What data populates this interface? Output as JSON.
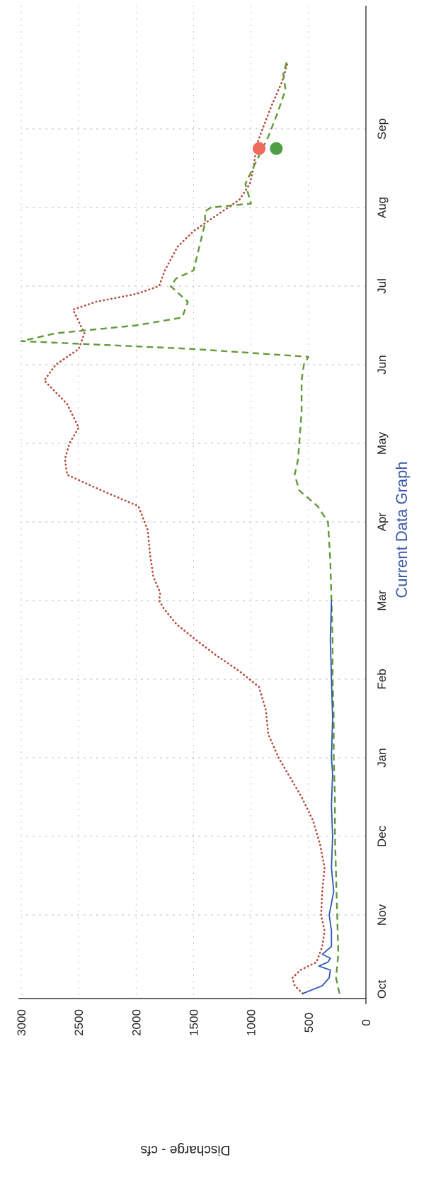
{
  "chart_data": {
    "type": "line",
    "title": "Current Data Graph",
    "ylabel": "Discharge - cfs",
    "xlabel": "",
    "ylim": [
      0,
      3000
    ],
    "xlim": [
      0,
      12
    ],
    "y_ticks": [
      0,
      500,
      1000,
      1500,
      2000,
      2500,
      3000
    ],
    "x_ticks": [
      {
        "label": "Oct",
        "x": 0
      },
      {
        "label": "Nov",
        "x": 1
      },
      {
        "label": "Dec",
        "x": 2
      },
      {
        "label": "Jan",
        "x": 3
      },
      {
        "label": "Feb",
        "x": 4
      },
      {
        "label": "Mar",
        "x": 5
      },
      {
        "label": "Apr",
        "x": 6
      },
      {
        "label": "May",
        "x": 7
      },
      {
        "label": "Jun",
        "x": 8
      },
      {
        "label": "Jul",
        "x": 9
      },
      {
        "label": "Aug",
        "x": 10
      },
      {
        "label": "Sep",
        "x": 11
      }
    ],
    "grid": true,
    "series": [
      {
        "style": "dotted",
        "color": "#b5473a",
        "x": [
          0.0,
          0.1,
          0.2,
          0.3,
          0.4,
          0.6,
          0.8,
          1.0,
          1.3,
          1.6,
          1.9,
          2.2,
          2.5,
          2.8,
          3.0,
          3.3,
          3.6,
          3.9,
          4.1,
          4.3,
          4.5,
          4.7,
          4.9,
          5.0,
          5.1,
          5.3,
          5.6,
          5.9,
          6.2,
          6.4,
          6.6,
          6.8,
          7.0,
          7.2,
          7.5,
          7.8,
          8.0,
          8.2,
          8.4,
          8.7,
          8.8,
          8.9,
          9.0,
          9.2,
          9.5,
          9.7,
          9.9,
          10.1,
          10.3,
          10.5,
          10.8,
          11.0,
          11.3,
          11.6,
          11.85
        ],
        "y": [
          550,
          620,
          640,
          570,
          430,
          380,
          360,
          390,
          380,
          360,
          400,
          460,
          560,
          680,
          760,
          850,
          870,
          930,
          1100,
          1300,
          1480,
          1650,
          1760,
          1800,
          1790,
          1850,
          1880,
          1900,
          1980,
          2300,
          2600,
          2620,
          2580,
          2500,
          2600,
          2800,
          2700,
          2500,
          2450,
          2550,
          2350,
          2000,
          1800,
          1750,
          1640,
          1500,
          1300,
          1100,
          1010,
          980,
          950,
          900,
          820,
          730,
          680
        ]
      },
      {
        "style": "dashed",
        "color": "#5f9a3a",
        "x": [
          0.0,
          0.2,
          0.5,
          1.0,
          1.5,
          2.0,
          2.5,
          3.0,
          3.5,
          4.0,
          4.5,
          5.0,
          5.5,
          6.0,
          6.2,
          6.4,
          6.6,
          6.8,
          7.0,
          7.4,
          7.8,
          8.0,
          8.1,
          8.2,
          8.3,
          8.4,
          8.5,
          8.6,
          8.8,
          9.0,
          9.1,
          9.2,
          9.5,
          9.8,
          9.95,
          10.0,
          10.05,
          10.3,
          10.6,
          10.9,
          11.2,
          11.5,
          11.7,
          11.85
        ],
        "y": [
          230,
          260,
          240,
          250,
          260,
          270,
          270,
          280,
          280,
          290,
          290,
          300,
          310,
          330,
          420,
          580,
          620,
          590,
          580,
          560,
          560,
          540,
          500,
          1500,
          3000,
          2700,
          2000,
          1600,
          1550,
          1700,
          1650,
          1500,
          1450,
          1400,
          1400,
          1350,
          1000,
          1050,
          950,
          850,
          770,
          700,
          720,
          690
        ]
      },
      {
        "style": "solid",
        "color": "#2f56b0",
        "x": [
          0.0,
          0.1,
          0.2,
          0.3,
          0.35,
          0.4,
          0.45,
          0.5,
          0.6,
          0.8,
          1.0,
          1.3,
          1.6,
          2.0,
          2.4,
          2.8,
          3.0,
          3.5,
          4.0,
          4.5,
          5.0
        ],
        "y": [
          550,
          380,
          320,
          310,
          410,
          330,
          310,
          380,
          300,
          300,
          320,
          280,
          300,
          290,
          300,
          290,
          300,
          290,
          300,
          310,
          300
        ]
      }
    ],
    "markers": [
      {
        "x": 10.75,
        "y": 930,
        "color": "#f06a5c"
      },
      {
        "x": 10.75,
        "y": 780,
        "color": "#4e9f43"
      }
    ]
  }
}
